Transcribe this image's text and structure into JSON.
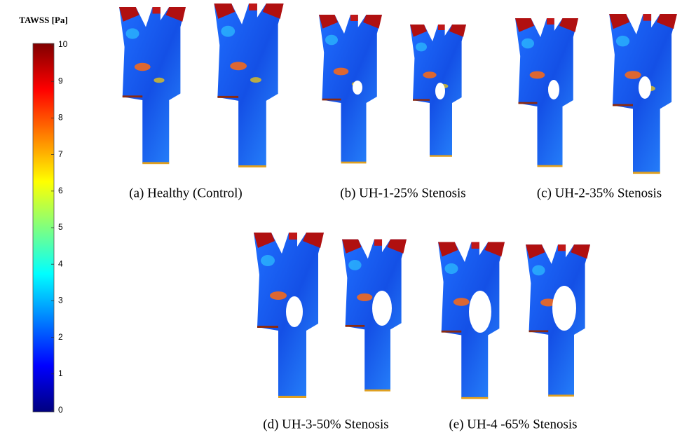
{
  "colorbar": {
    "title": "TAWSS [Pa]",
    "range": [
      0,
      10
    ],
    "ticks": [
      0,
      1,
      2,
      3,
      4,
      5,
      6,
      7,
      8,
      9,
      10
    ]
  },
  "panels": [
    {
      "caption": "(a) Healthy (Control)"
    },
    {
      "caption": "(b) UH-1-25% Stenosis"
    },
    {
      "caption": "(c) UH-2-35% Stenosis"
    },
    {
      "caption": "(d) UH-3-50% Stenosis"
    },
    {
      "caption": "(e) UH-4 -65% Stenosis"
    }
  ]
}
